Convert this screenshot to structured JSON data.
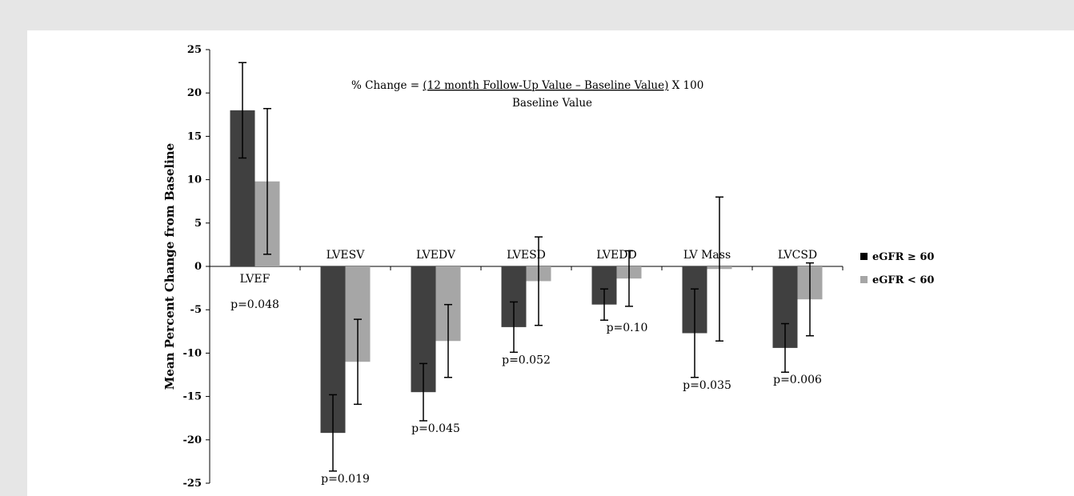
{
  "chart_data": {
    "type": "bar",
    "ylabel": "Mean Percent Change from Baseline",
    "ylim": [
      -25,
      25
    ],
    "ytick_step": 5,
    "ytick_labels": [
      "25",
      "20",
      "15",
      "10",
      "5",
      "0",
      "-5",
      "-10",
      "-15",
      "-20",
      "-25"
    ],
    "formula": {
      "prefix": "% Change = ",
      "numerator": "(12 month Follow-Up Value – Baseline Value)",
      "suffix": "  X 100",
      "denominator": "Baseline Value"
    },
    "categories": [
      "LVEF",
      "LVESV",
      "LVEDV",
      "LVESD",
      "LVEDD",
      "LV Mass",
      "LVCSD"
    ],
    "series": [
      {
        "name": "eGFR ≥ 60",
        "color": "#404040",
        "values": [
          18.0,
          -19.2,
          -14.5,
          -7.0,
          -4.4,
          -7.7,
          -9.4
        ],
        "error": [
          5.5,
          4.4,
          3.3,
          2.9,
          1.8,
          5.1,
          2.8
        ]
      },
      {
        "name": "eGFR < 60",
        "color": "#a6a6a6",
        "values": [
          9.8,
          -11.0,
          -8.6,
          -1.7,
          -1.4,
          -0.3,
          -3.8
        ],
        "error": [
          8.4,
          4.9,
          4.2,
          5.1,
          3.2,
          8.3,
          4.2
        ]
      }
    ],
    "p_values": [
      "p=0.048",
      "p=0.019",
      "p=0.045",
      "p=0.052",
      "p=0.10",
      "p=0.035",
      "p=0.006"
    ],
    "legend_position": "right",
    "grid": false
  }
}
